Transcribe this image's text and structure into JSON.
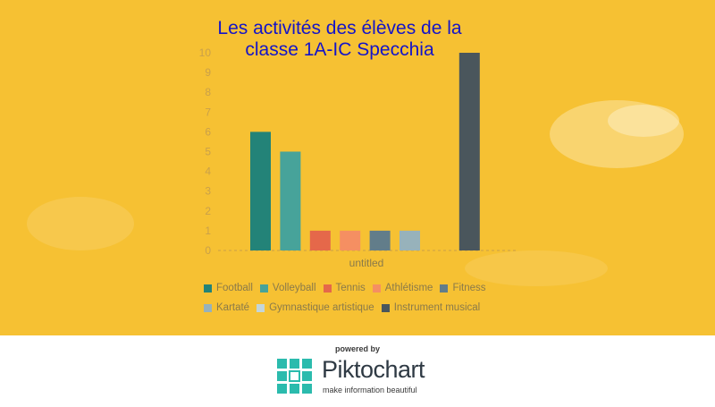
{
  "chart_data": {
    "type": "bar",
    "title": "Les activités des élèves de la classe 1A-IC Specchia",
    "title_lines": [
      "Les activités des élèves de la",
      "classe 1A-IC Specchia"
    ],
    "xlabel": "untitled",
    "ylabel": "",
    "ylim": [
      0,
      10
    ],
    "yticks": [
      0,
      1,
      2,
      3,
      4,
      5,
      6,
      7,
      8,
      9,
      10
    ],
    "grid": false,
    "legend_position": "bottom",
    "series": [
      {
        "name": "Football",
        "value": 6,
        "color": "#238378"
      },
      {
        "name": "Volleyball",
        "value": 5,
        "color": "#47a39a"
      },
      {
        "name": "Tennis",
        "value": 1,
        "color": "#e5684a"
      },
      {
        "name": "Athlétisme",
        "value": 1,
        "color": "#f58f62"
      },
      {
        "name": "Fitness",
        "value": 1,
        "color": "#627d8a"
      },
      {
        "name": "Kartaté",
        "value": 1,
        "color": "#97b2bb"
      },
      {
        "name": "Gymnastique artistique",
        "value": 0,
        "color": "#c4d6da"
      },
      {
        "name": "Instrument musical",
        "value": 10,
        "color": "#4a565c"
      }
    ]
  },
  "footer": {
    "powered_by": "powered by",
    "brand": "Piktochart",
    "tagline": "make information beautiful"
  }
}
